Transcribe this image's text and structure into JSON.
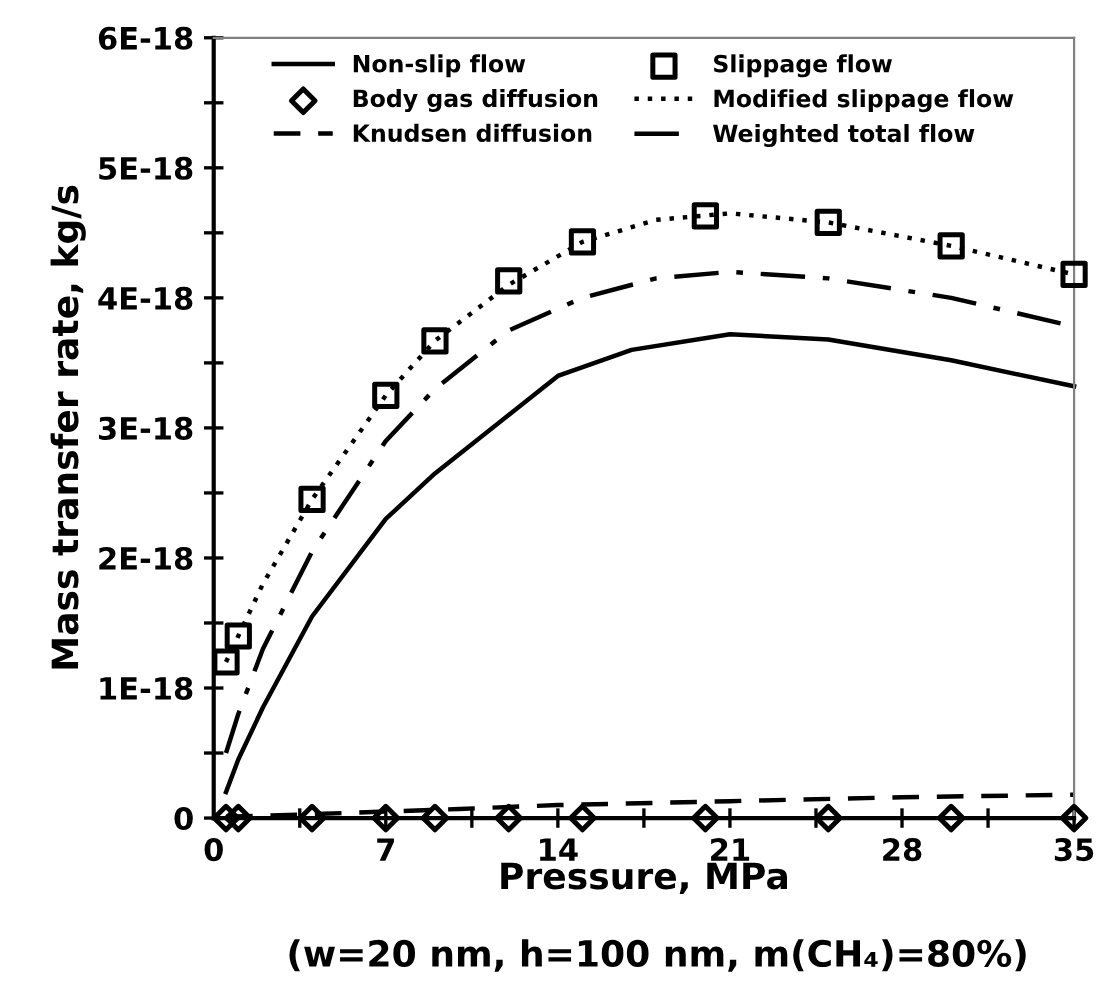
{
  "chart_data": {
    "type": "line",
    "xlabel": "Pressure, MPa",
    "ylabel": "Mass transfer rate, kg/s",
    "annotations": [
      "(w=20 nm, h=100 nm, m(CH₄)=80%)"
    ],
    "xlim": [
      0,
      35
    ],
    "ylim": [
      0,
      6e-18
    ],
    "xticks": [
      0,
      {
        "value": 3.5,
        "label": null
      },
      7,
      {
        "value": 10.5,
        "label": null
      },
      14,
      {
        "value": 17.5,
        "label": null
      },
      21,
      {
        "value": 24.5,
        "label": null
      },
      28,
      {
        "value": 31.5,
        "label": null
      },
      35
    ],
    "yticks": [
      0,
      {
        "value": 5e-19,
        "label": null
      },
      {
        "value": 1e-18,
        "label": "1E-18"
      },
      {
        "value": 1.5e-18,
        "label": null
      },
      {
        "value": 2e-18,
        "label": "2E-18"
      },
      {
        "value": 2.5e-18,
        "label": null
      },
      {
        "value": 3e-18,
        "label": "3E-18"
      },
      {
        "value": 3.5e-18,
        "label": null
      },
      {
        "value": 4e-18,
        "label": "4E-18"
      },
      {
        "value": 4.5e-18,
        "label": null
      },
      {
        "value": 5e-18,
        "label": "5E-18"
      },
      {
        "value": 5.5e-18,
        "label": null
      },
      {
        "value": 6e-18,
        "label": "6E-18"
      }
    ],
    "grid": false,
    "legend": "top",
    "series": [
      {
        "name": "Non-slip flow",
        "color": "#000000",
        "line_style": "solid",
        "marker": "none",
        "x": [
          0.5,
          1,
          2,
          4,
          7,
          9,
          12,
          14,
          17,
          21,
          25,
          30,
          35
        ],
        "values": [
          2e-19,
          4.5e-19,
          8.5e-19,
          1.55e-18,
          2.3e-18,
          2.65e-18,
          3.1e-18,
          3.4e-18,
          3.6e-18,
          3.72e-18,
          3.68e-18,
          3.52e-18,
          3.32e-18
        ]
      },
      {
        "name": "Slippage flow",
        "type": "scatter",
        "color": "#000000",
        "marker": "square",
        "x": [
          0.5,
          1,
          4,
          7,
          9,
          12,
          15,
          20,
          25,
          30,
          35
        ],
        "values": [
          1.2e-18,
          1.4e-18,
          2.45e-18,
          3.25e-18,
          3.67e-18,
          4.13e-18,
          4.43e-18,
          4.63e-18,
          4.58e-18,
          4.4e-18,
          4.18e-18
        ]
      },
      {
        "name": "Body gas diffusion",
        "type": "scatter",
        "color": "#000000",
        "marker": "diamond",
        "x": [
          0.5,
          1,
          4,
          7,
          9,
          12,
          15,
          20,
          25,
          30,
          35
        ],
        "values": [
          0,
          0,
          0,
          0,
          0,
          0,
          0,
          0,
          0,
          0,
          0
        ]
      },
      {
        "name": "Modified slippage flow",
        "color": "#000000",
        "line_style": "dotted",
        "marker": "none",
        "x": [
          0.5,
          1,
          2,
          4,
          7,
          9,
          12,
          15,
          18,
          21,
          25,
          30,
          35
        ],
        "values": [
          1.2e-18,
          1.4e-18,
          1.8e-18,
          2.45e-18,
          3.25e-18,
          3.67e-18,
          4.1e-18,
          4.43e-18,
          4.6e-18,
          4.65e-18,
          4.58e-18,
          4.4e-18,
          4.18e-18
        ]
      },
      {
        "name": "Knudsen diffusion",
        "color": "#000000",
        "line_style": "dashed",
        "marker": "none",
        "x": [
          0.5,
          4,
          7,
          10,
          14,
          21,
          28,
          35
        ],
        "values": [
          1e-20,
          3e-20,
          5e-20,
          7e-20,
          1e-19,
          1.3e-19,
          1.6e-19,
          1.8e-19
        ]
      },
      {
        "name": "Weighted total flow",
        "color": "#000000",
        "line_style": "dashdot",
        "marker": "none",
        "x": [
          0.5,
          1,
          2,
          4,
          7,
          9,
          12,
          15,
          18,
          21,
          25,
          30,
          35
        ],
        "values": [
          5e-19,
          8e-19,
          1.3e-18,
          2.05e-18,
          2.9e-18,
          3.3e-18,
          3.75e-18,
          4e-18,
          4.15e-18,
          4.2e-18,
          4.15e-18,
          4e-18,
          3.78e-18
        ]
      }
    ]
  }
}
